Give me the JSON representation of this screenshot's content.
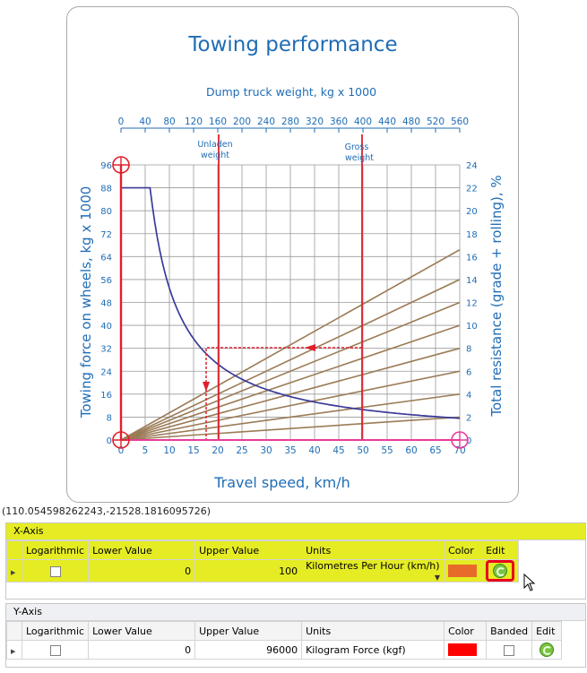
{
  "chart": {
    "title": "Towing performance",
    "top_axis_label": "Dump truck weight, kg x 1000",
    "top_ticks": [
      "0",
      "40",
      "80",
      "120",
      "160",
      "200",
      "240",
      "280",
      "320",
      "360",
      "400",
      "440",
      "480",
      "520",
      "560"
    ],
    "left_axis_label": "Towing force on wheels, kg x 1000",
    "left_ticks": [
      "0",
      "8",
      "16",
      "24",
      "32",
      "40",
      "48",
      "56",
      "64",
      "72",
      "80",
      "88",
      "96"
    ],
    "right_axis_label": "Total resistance (grade + rolling), %",
    "right_ticks": [
      "0",
      "2",
      "4",
      "6",
      "8",
      "10",
      "12",
      "14",
      "16",
      "18",
      "20",
      "22",
      "24"
    ],
    "bottom_axis_label": "Travel speed, km/h",
    "bottom_ticks": [
      "0",
      "5",
      "10",
      "15",
      "20",
      "25",
      "30",
      "35",
      "40",
      "45",
      "50",
      "55",
      "60",
      "65",
      "70"
    ],
    "unladen_label_1": "Unladen",
    "unladen_label_2": "weight",
    "gross_label_1": "Gross",
    "gross_label_2": "weight",
    "colors": {
      "blue": "#1f6db5",
      "curve": "#3a3a9a",
      "grid": "#9a9a9a",
      "resist": "#9b7b56",
      "marker": "#e0202b",
      "pink": "#e83c9a"
    }
  },
  "coords_text": "(110.054598262243,-21528.1816095726)",
  "x_axis": {
    "title": "X-Axis",
    "headers": [
      "Logarithmic",
      "Lower Value",
      "Upper Value",
      "Units",
      "Color",
      "Edit"
    ],
    "row": {
      "lower": "0",
      "upper": "100",
      "units": "Kilometres Per Hour (km/h)",
      "color": "#e86a2a"
    }
  },
  "y_axis": {
    "title": "Y-Axis",
    "headers": [
      "Logarithmic",
      "Lower Value",
      "Upper Value",
      "Units",
      "Color",
      "Banded",
      "Edit"
    ],
    "row": {
      "lower": "0",
      "upper": "96000",
      "units": "Kilogram Force (kgf)",
      "color": "#ff0000"
    }
  }
}
